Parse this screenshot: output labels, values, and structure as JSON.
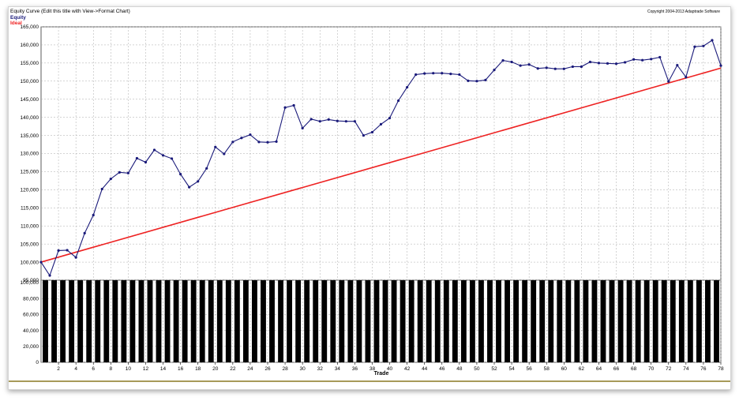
{
  "chart_data": [
    {
      "type": "line",
      "title": "Equity Curve (Edit this title with View->Format Chart)",
      "copyright": "Copyright 2004-2013 Adaptrade Software",
      "ylabel": "",
      "ylim": [
        95000,
        165000
      ],
      "yticks": [
        95000,
        100000,
        105000,
        110000,
        115000,
        120000,
        125000,
        130000,
        135000,
        140000,
        145000,
        150000,
        155000,
        160000,
        165000
      ],
      "ytick_labels": [
        "95,000",
        "100,000",
        "105,000",
        "110,000",
        "115,000",
        "120,000",
        "125,000",
        "130,000",
        "135,000",
        "140,000",
        "145,000",
        "150,000",
        "155,000",
        "160,000",
        "165,000"
      ],
      "grid": true,
      "legend_position": "top-left",
      "series": [
        {
          "name": "Equity",
          "color": "#1a1a7a",
          "marker": "circle",
          "x": [
            0,
            1,
            2,
            3,
            4,
            5,
            6,
            7,
            8,
            9,
            10,
            11,
            12,
            13,
            14,
            15,
            16,
            17,
            18,
            19,
            20,
            21,
            22,
            23,
            24,
            25,
            26,
            27,
            28,
            29,
            30,
            31,
            32,
            33,
            34,
            35,
            36,
            37,
            38,
            39,
            40,
            41,
            42,
            43,
            44,
            45,
            46,
            47,
            48,
            49,
            50,
            51,
            52,
            53,
            54,
            55,
            56,
            57,
            58,
            59,
            60,
            61,
            62,
            63,
            64,
            65,
            66,
            67,
            68,
            69,
            70,
            71,
            72,
            73,
            74,
            75,
            76,
            77,
            78
          ],
          "values": [
            100000,
            96300,
            103200,
            103300,
            101300,
            108000,
            113000,
            120200,
            123000,
            124800,
            124600,
            128700,
            127600,
            131000,
            129500,
            128600,
            124300,
            120700,
            122300,
            125900,
            131800,
            129900,
            133200,
            134300,
            135200,
            133200,
            133100,
            133300,
            142700,
            143300,
            137000,
            139500,
            138900,
            139400,
            139000,
            138900,
            138900,
            135000,
            135900,
            138100,
            139800,
            144600,
            148300,
            151800,
            152100,
            152200,
            152200,
            152000,
            151800,
            150100,
            150000,
            150300,
            153100,
            155700,
            155300,
            154300,
            154600,
            153500,
            153700,
            153400,
            153400,
            154000,
            154000,
            155300,
            155000,
            154900,
            154800,
            155200,
            156000,
            155800,
            156100,
            156600,
            149900,
            154400,
            151100,
            159500,
            159700,
            161300,
            154300
          ]
        },
        {
          "name": "Ideal",
          "color": "#ee2222",
          "marker": "none",
          "x": [
            0,
            78
          ],
          "values": [
            100000,
            153600
          ]
        }
      ]
    },
    {
      "type": "bar",
      "ylabel": "",
      "ylim": [
        0,
        100000
      ],
      "yticks": [
        0,
        20000,
        40000,
        60000,
        80000,
        100000
      ],
      "ytick_labels": [
        "0",
        "20,000",
        "40,000",
        "60,000",
        "80,000",
        "100,000"
      ],
      "xlabel": "Trade",
      "xticks": [
        2,
        4,
        6,
        8,
        10,
        12,
        14,
        16,
        18,
        20,
        22,
        24,
        26,
        28,
        30,
        32,
        34,
        36,
        38,
        40,
        42,
        44,
        46,
        48,
        50,
        52,
        54,
        56,
        58,
        60,
        62,
        64,
        66,
        68,
        70,
        72,
        74,
        76,
        78
      ],
      "grid": true,
      "bar_color": "#000000",
      "x": [
        1,
        2,
        3,
        4,
        5,
        6,
        7,
        8,
        9,
        10,
        11,
        12,
        13,
        14,
        15,
        16,
        17,
        18,
        19,
        20,
        21,
        22,
        23,
        24,
        25,
        26,
        27,
        28,
        29,
        30,
        31,
        32,
        33,
        34,
        35,
        36,
        37,
        38,
        39,
        40,
        41,
        42,
        43,
        44,
        45,
        46,
        47,
        48,
        49,
        50,
        51,
        52,
        53,
        54,
        55,
        56,
        57,
        58,
        59,
        60,
        61,
        62,
        63,
        64,
        65,
        66,
        67,
        68,
        69,
        70,
        71,
        72,
        73,
        74,
        75,
        76,
        77,
        78
      ],
      "values": [
        103000,
        103000,
        103000,
        103000,
        103000,
        103000,
        103000,
        103000,
        103000,
        103000,
        103000,
        103000,
        103000,
        103000,
        103000,
        103000,
        103000,
        103000,
        103000,
        103000,
        103000,
        103000,
        103000,
        103000,
        103000,
        103000,
        103000,
        103000,
        103000,
        103000,
        103000,
        103000,
        103000,
        103000,
        103000,
        103000,
        103000,
        103000,
        103000,
        103000,
        103000,
        103000,
        103000,
        103000,
        103000,
        103000,
        103000,
        103000,
        103000,
        103000,
        103000,
        103000,
        103000,
        103000,
        103000,
        103000,
        103000,
        103000,
        103000,
        103000,
        103000,
        103000,
        103000,
        103000,
        103000,
        103000,
        103000,
        103000,
        103000,
        103000,
        103000,
        103000,
        103000,
        103000,
        103000,
        103000,
        103000,
        103000
      ]
    }
  ],
  "colors": {
    "accent_line": "#a89a5a",
    "grid": "#aaaaaa"
  }
}
